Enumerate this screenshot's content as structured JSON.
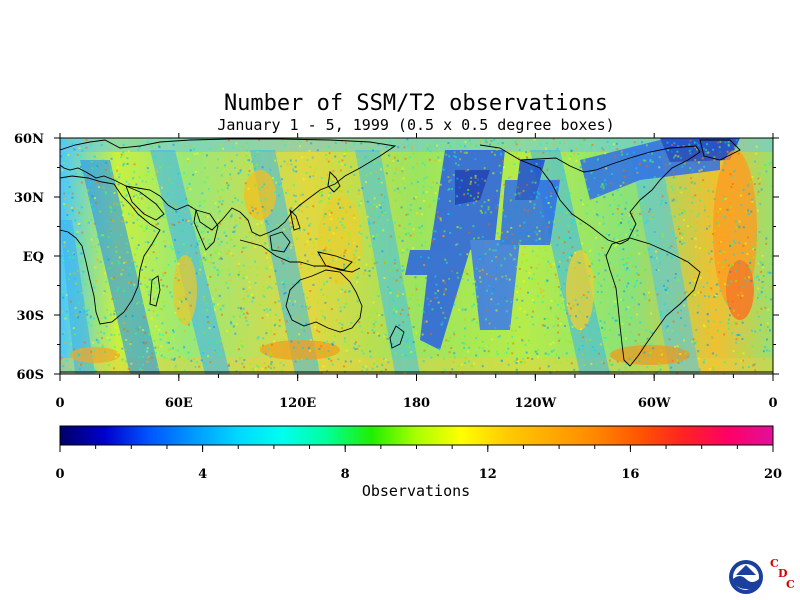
{
  "title": "Number of SSM/T2 observations",
  "subtitle": "January 1 - 5, 1999 (0.5 x 0.5 degree boxes)",
  "map": {
    "lat_labels": [
      "60N",
      "30N",
      "EQ",
      "30S",
      "60S"
    ],
    "lon_labels": [
      "0",
      "60E",
      "120E",
      "180",
      "120W",
      "60W",
      "0"
    ]
  },
  "colorbar": {
    "label": "Observations",
    "min": 0,
    "max": 20,
    "ticks": [
      "0",
      "4",
      "8",
      "12",
      "16",
      "20"
    ],
    "colors": [
      "#000066",
      "#0000cc",
      "#0055ff",
      "#0099ff",
      "#00d8ff",
      "#00ffee",
      "#00ff99",
      "#22ee00",
      "#aaff00",
      "#ffff00",
      "#ffcc00",
      "#ffaa00",
      "#ff8800",
      "#ff5500",
      "#ff2222",
      "#ff0066",
      "#e0109a"
    ]
  },
  "logo": {
    "letters": [
      "C",
      "D",
      "C"
    ],
    "icon": "noaa-emblem-icon"
  }
}
